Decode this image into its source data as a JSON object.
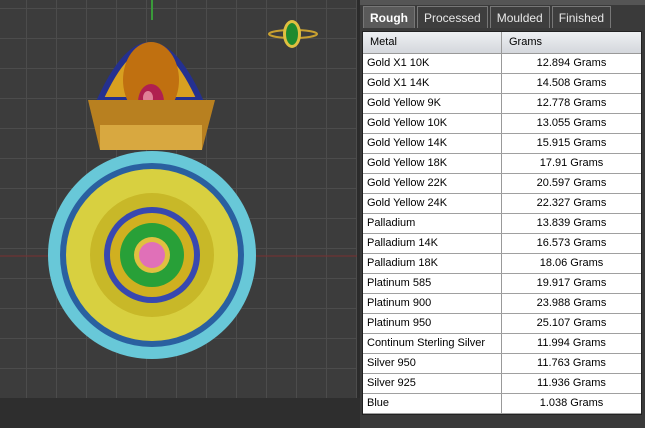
{
  "tabs": [
    {
      "label": "Rough",
      "active": true
    },
    {
      "label": "Processed"
    },
    {
      "label": "Moulded"
    },
    {
      "label": "Finished"
    }
  ],
  "table": {
    "headers": [
      "Metal",
      "Grams"
    ],
    "rows": [
      [
        "Gold X1 10K",
        "12.894 Grams"
      ],
      [
        "Gold X1 14K",
        "14.508 Grams"
      ],
      [
        "Gold Yellow 9K",
        "12.778 Grams"
      ],
      [
        "Gold Yellow 10K",
        "13.055 Grams"
      ],
      [
        "Gold Yellow 14K",
        "15.915 Grams"
      ],
      [
        "Gold Yellow 18K",
        "17.91 Grams"
      ],
      [
        "Gold Yellow 22K",
        "20.597 Grams"
      ],
      [
        "Gold Yellow 24K",
        "22.327 Grams"
      ],
      [
        "Palladium",
        "13.839 Grams"
      ],
      [
        "Palladium 14K",
        "16.573 Grams"
      ],
      [
        "Palladium 18K",
        "18.06 Grams"
      ],
      [
        "Platinum 585",
        "19.917 Grams"
      ],
      [
        "Platinum 900",
        "23.988 Grams"
      ],
      [
        "Platinum 950",
        "25.107 Grams"
      ],
      [
        "Continum Sterling Silver",
        "11.994 Grams"
      ],
      [
        "Silver 950",
        "11.763 Grams"
      ],
      [
        "Silver 925",
        "11.936 Grams"
      ],
      [
        "Blue",
        "1.038 Grams"
      ]
    ]
  },
  "colors": {
    "gold": "#d4b020",
    "turquoise": "#6cc8d8",
    "ruby": "#c0305a",
    "emerald": "#2a9a3a",
    "blue": "#2a3aa0"
  }
}
